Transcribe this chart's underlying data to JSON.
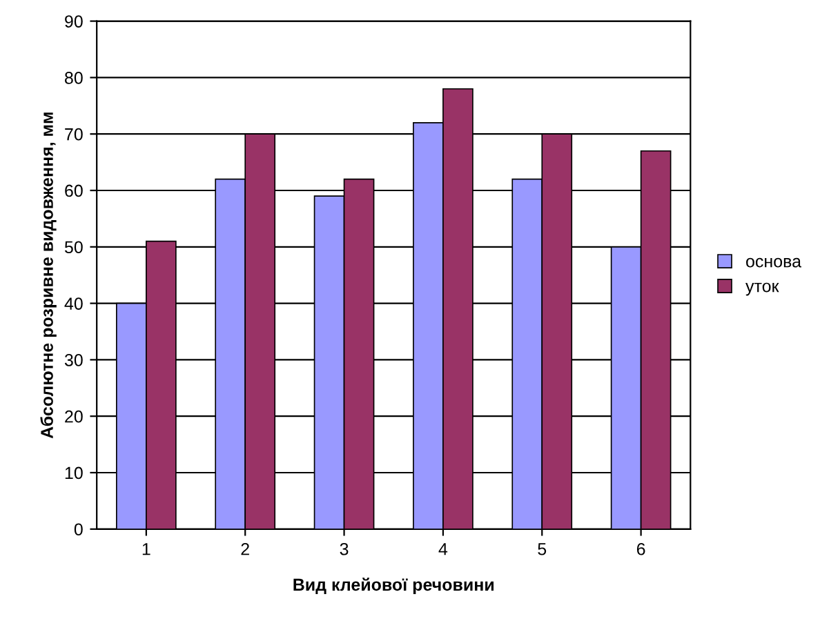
{
  "chart_data": {
    "type": "bar",
    "xlabel": "Вид клейової речовини",
    "ylabel": "Абсолютне розривне видовження, мм",
    "categories": [
      "1",
      "2",
      "3",
      "4",
      "5",
      "6"
    ],
    "series": [
      {
        "name": "основа",
        "color": "#9999ff",
        "values": [
          40,
          62,
          59,
          72,
          62,
          50
        ]
      },
      {
        "name": "уток",
        "color": "#993366",
        "values": [
          51,
          70,
          62,
          78,
          70,
          67
        ]
      }
    ],
    "ylim": [
      0,
      90
    ],
    "yticks": [
      0,
      10,
      20,
      30,
      40,
      50,
      60,
      70,
      80,
      90
    ],
    "grid": "y",
    "legend": "right"
  }
}
